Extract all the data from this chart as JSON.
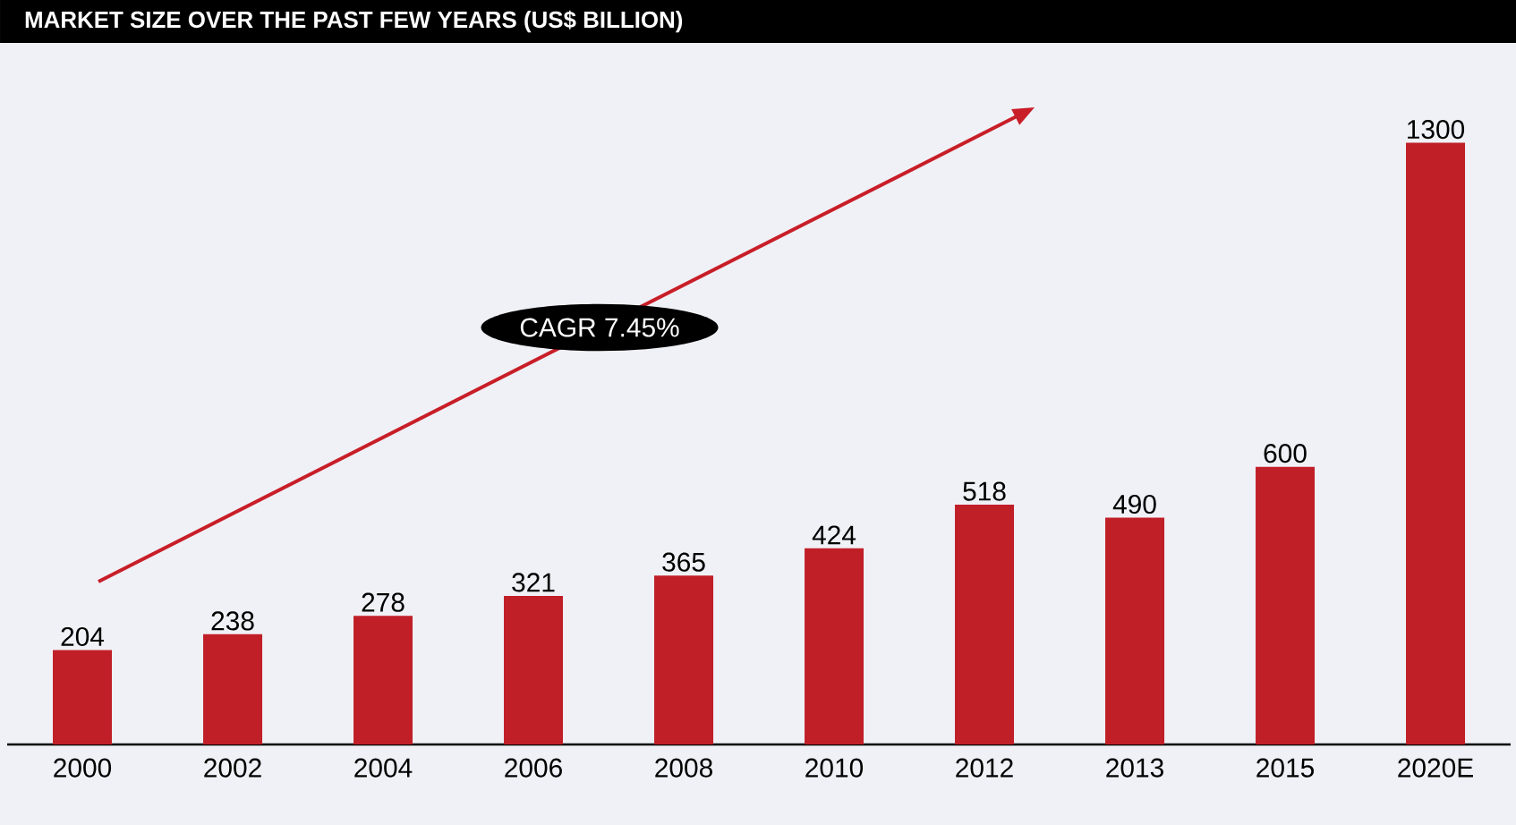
{
  "chart_data": {
    "type": "bar",
    "title": "MARKET SIZE OVER THE PAST FEW YEARS (US$ BILLION)",
    "categories": [
      "2000",
      "2002",
      "2004",
      "2006",
      "2008",
      "2010",
      "2012",
      "2013",
      "2015",
      "2020E"
    ],
    "values": [
      204,
      238,
      278,
      321,
      365,
      424,
      518,
      490,
      600,
      1300
    ],
    "color": "#c11f28",
    "data_labels": true,
    "tick_labels": "x",
    "annotations": [
      "CAGR 7.45%"
    ]
  }
}
